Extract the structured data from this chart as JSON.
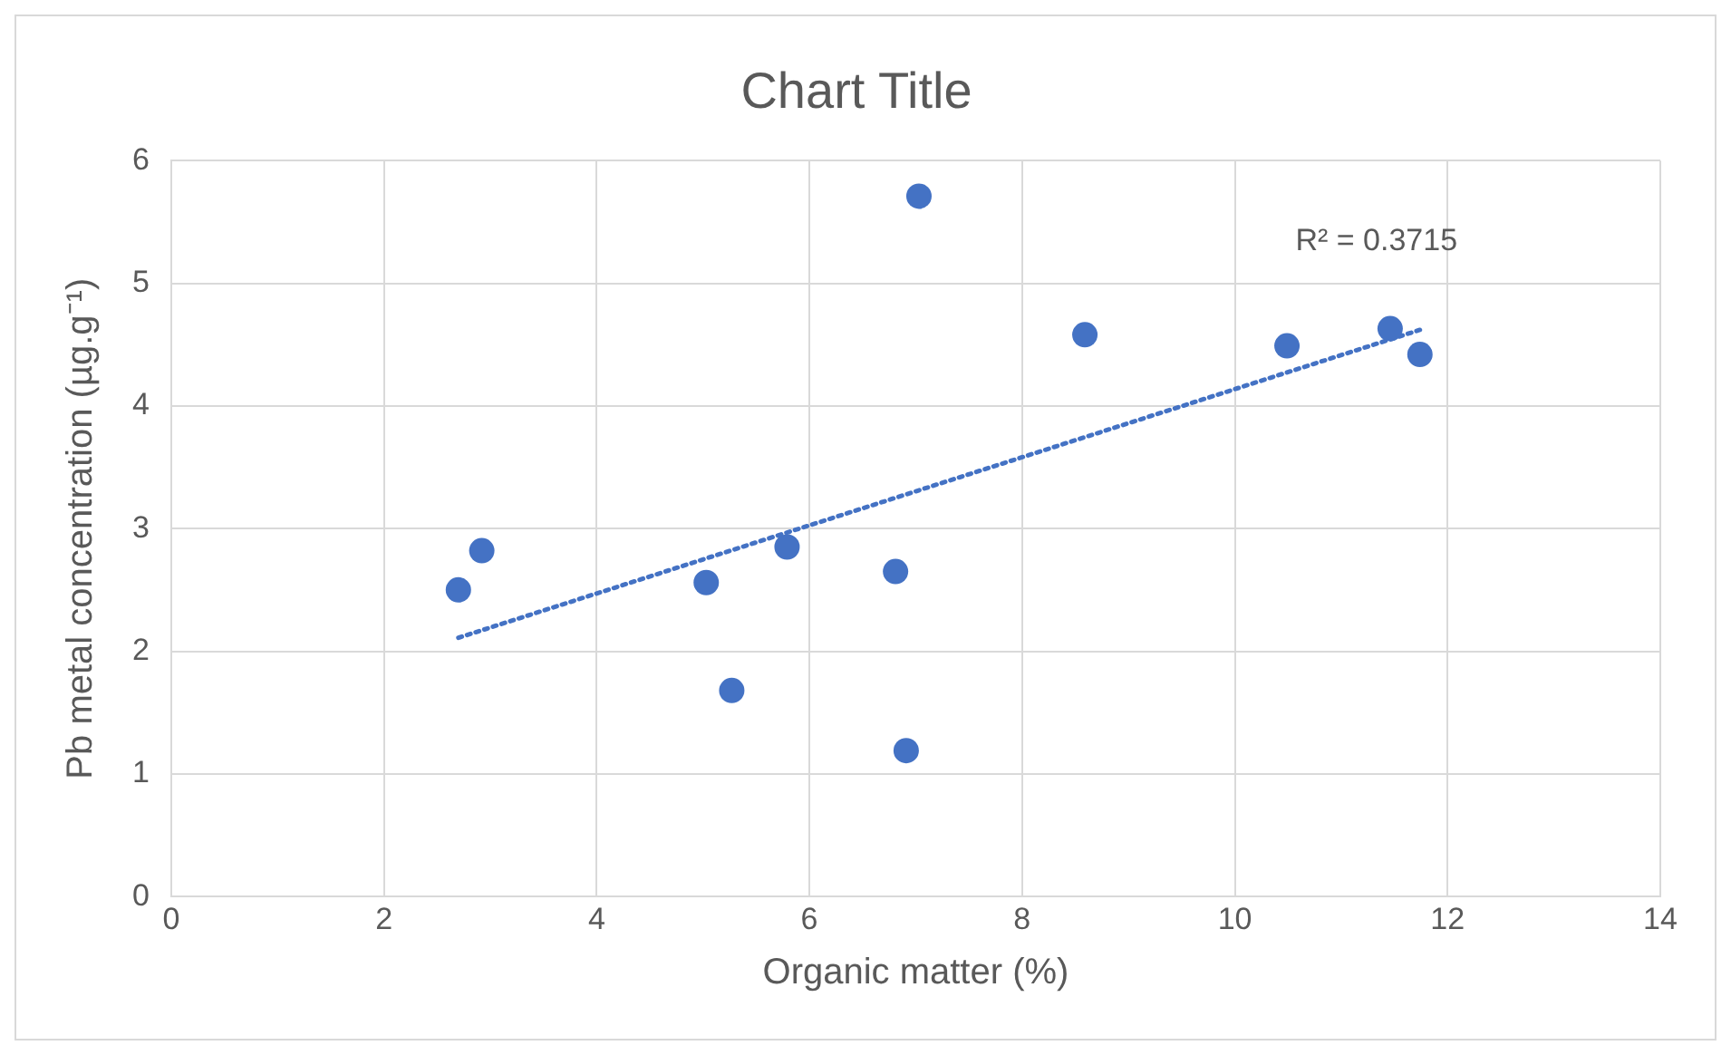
{
  "chart_data": {
    "type": "scatter",
    "title": "Chart Title",
    "xlabel": "Organic matter (%)",
    "ylabel": "Pb metal concentration (µg.g⁻¹)",
    "xlim": [
      0,
      14
    ],
    "xticks": [
      0,
      2,
      4,
      6,
      8,
      10,
      12,
      14
    ],
    "ylim": [
      0,
      6
    ],
    "yticks": [
      0,
      1,
      2,
      3,
      4,
      5,
      6
    ],
    "grid": true,
    "legend": false,
    "series": [
      {
        "color": "#4472c4",
        "marker": "circle",
        "x": [
          2.7,
          2.92,
          5.03,
          5.27,
          5.79,
          6.81,
          6.91,
          7.03,
          8.59,
          10.49,
          11.46,
          11.74
        ],
        "values": [
          2.5,
          2.82,
          2.56,
          1.68,
          2.85,
          2.65,
          1.19,
          5.71,
          4.58,
          4.49,
          4.63,
          4.42
        ]
      },
      {
        "type": "line",
        "color": "#4472c4",
        "marker": "none",
        "line_style": "dotted",
        "x": [
          2.7,
          11.74
        ],
        "values": [
          2.11,
          4.62
        ]
      }
    ],
    "annotations": [
      "R² = 0.3715"
    ]
  }
}
